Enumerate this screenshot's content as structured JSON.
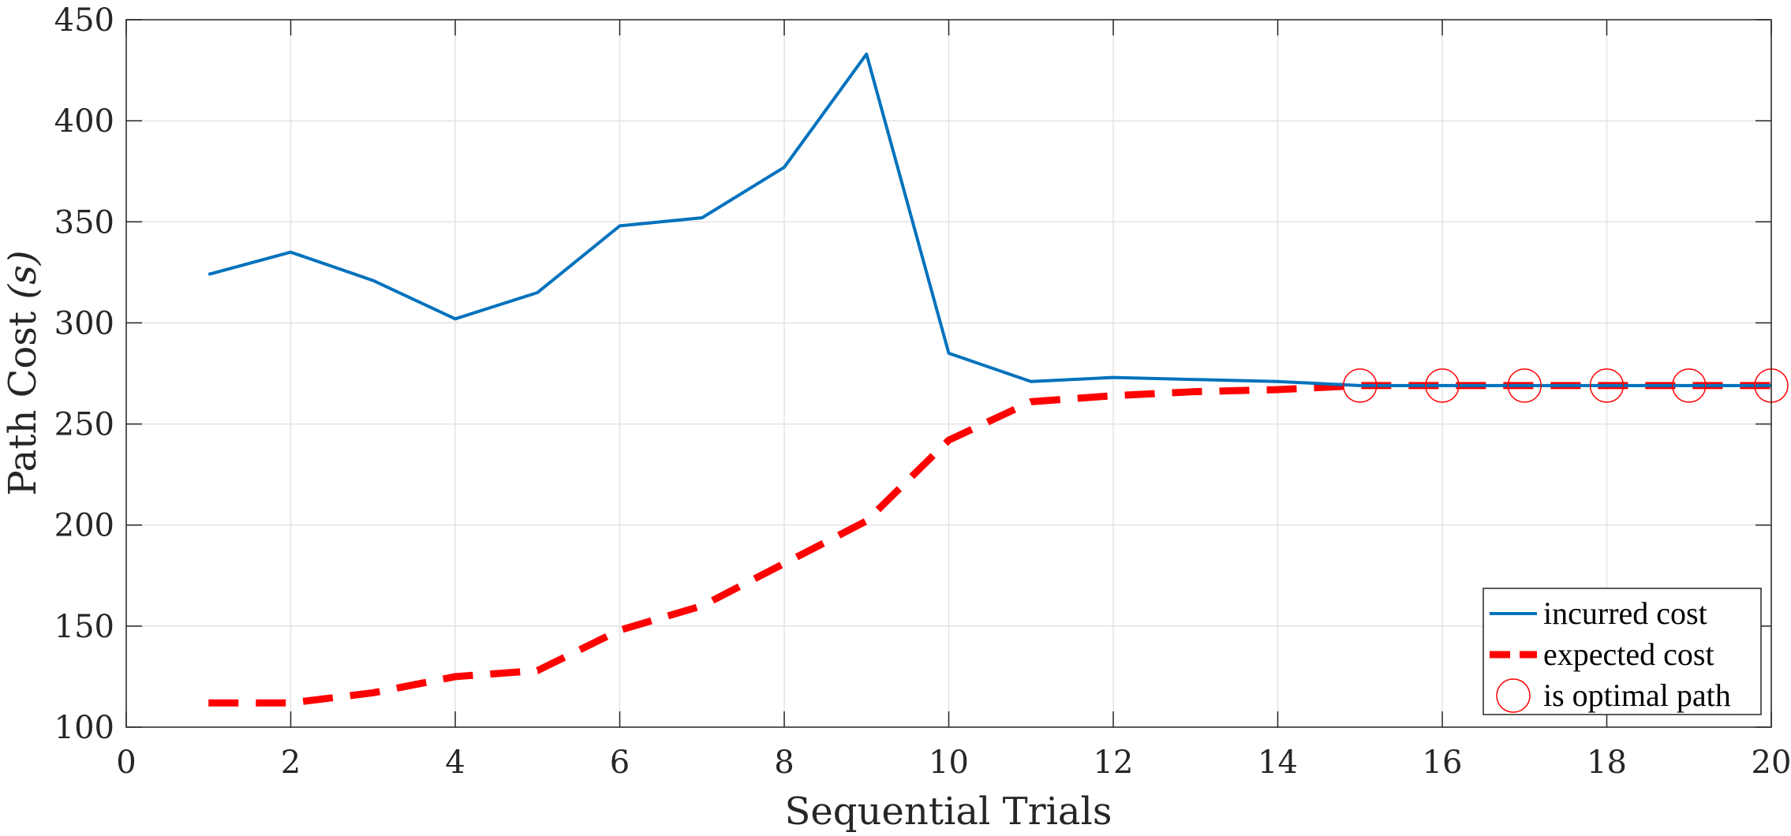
{
  "chart_data": {
    "type": "line",
    "title": "",
    "xlabel": "Sequential Trials",
    "ylabel_text": "Path Cost ",
    "ylabel_unit": "(s)",
    "xlim": [
      0,
      20
    ],
    "ylim": [
      100,
      450
    ],
    "xticks": [
      0,
      2,
      4,
      6,
      8,
      10,
      12,
      14,
      16,
      18,
      20
    ],
    "yticks": [
      100,
      150,
      200,
      250,
      300,
      350,
      400,
      450
    ],
    "grid": true,
    "legend_position": "bottom-right",
    "x": [
      1,
      2,
      3,
      4,
      5,
      6,
      7,
      8,
      9,
      10,
      11,
      12,
      13,
      14,
      15,
      16,
      17,
      18,
      19,
      20
    ],
    "series": [
      {
        "name": "incurred cost",
        "style": "solid",
        "color": "#0072BD",
        "values": [
          324,
          335,
          321,
          302,
          315,
          348,
          352,
          377,
          433,
          285,
          271,
          273,
          272,
          271,
          269,
          269,
          269,
          269,
          269,
          269
        ]
      },
      {
        "name": "expected cost",
        "style": "dashed",
        "color": "#FF0000",
        "values": [
          112,
          112,
          117,
          125,
          128,
          148,
          160,
          181,
          202,
          242,
          261,
          264,
          266,
          267,
          269,
          269,
          269,
          269,
          269,
          269
        ]
      }
    ],
    "markers": {
      "name": "is optimal path",
      "marker": "circle",
      "color": "#FF0000",
      "x": [
        15,
        16,
        17,
        18,
        19,
        20
      ],
      "y": [
        269,
        269,
        269,
        269,
        269,
        269
      ]
    }
  }
}
